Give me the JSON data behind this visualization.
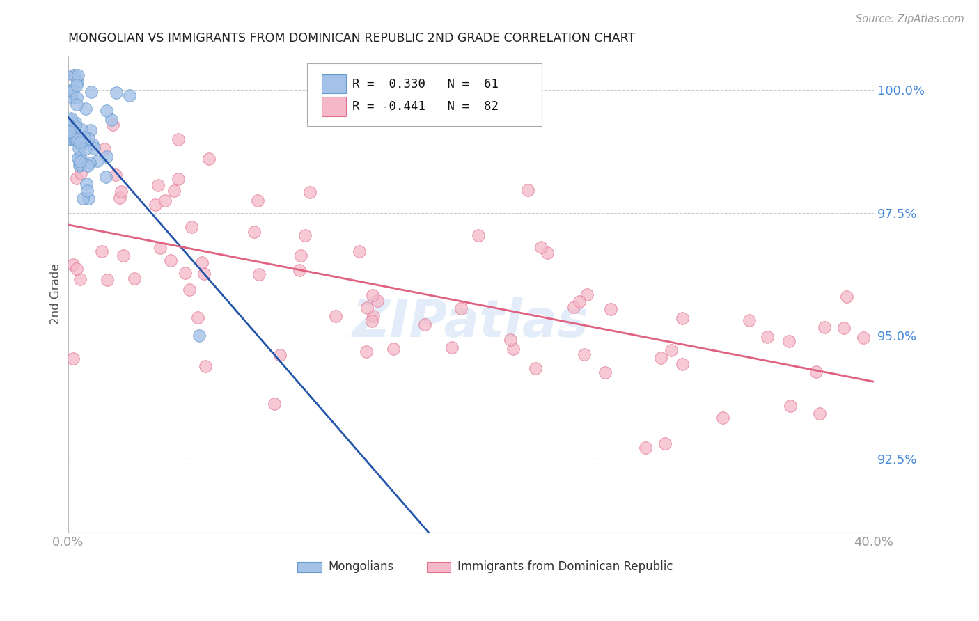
{
  "title": "MONGOLIAN VS IMMIGRANTS FROM DOMINICAN REPUBLIC 2ND GRADE CORRELATION CHART",
  "source": "Source: ZipAtlas.com",
  "ylabel": "2nd Grade",
  "right_yticks": [
    "100.0%",
    "97.5%",
    "95.0%",
    "92.5%"
  ],
  "right_ytick_vals": [
    1.0,
    0.975,
    0.95,
    0.925
  ],
  "legend_r_blue": "0.330",
  "legend_n_blue": "61",
  "legend_r_pink": "-0.441",
  "legend_n_pink": "82",
  "watermark": "ZIPatlas",
  "blue_fill": "#a4c2e8",
  "blue_edge": "#6699cc",
  "pink_fill": "#f4b8c8",
  "pink_edge": "#e07090",
  "blue_line": "#2255aa",
  "pink_line": "#e06080",
  "legend_blue_fill": "#a4c2e8",
  "legend_pink_fill": "#f4b8c8",
  "xmin": 0.0,
  "xmax": 0.4,
  "ymin": 0.91,
  "ymax": 1.007,
  "background_color": "#ffffff",
  "grid_color": "#cccccc",
  "axis_color": "#999999",
  "title_color": "#222222",
  "right_tick_color": "#4488dd",
  "ylabel_color": "#555555"
}
